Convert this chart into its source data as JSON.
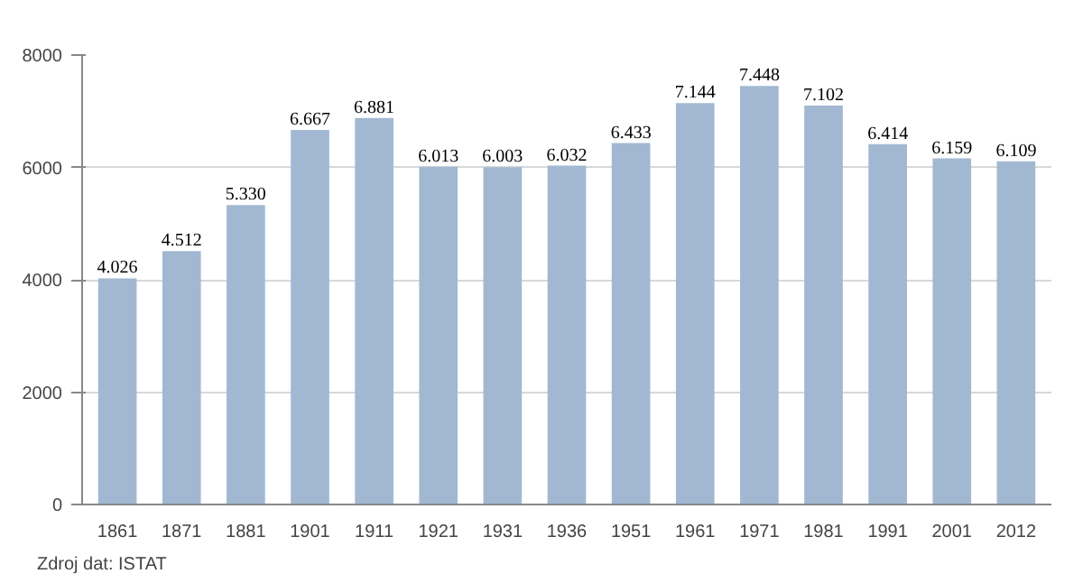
{
  "chart_data": {
    "type": "bar",
    "categories": [
      "1861",
      "1871",
      "1881",
      "1901",
      "1911",
      "1921",
      "1931",
      "1936",
      "1951",
      "1961",
      "1971",
      "1981",
      "1991",
      "2001",
      "2012"
    ],
    "values": [
      4026,
      4512,
      5330,
      6667,
      6881,
      6013,
      6003,
      6032,
      6433,
      7144,
      7448,
      7102,
      6414,
      6159,
      6109
    ],
    "value_labels": [
      "4.026",
      "4.512",
      "5.330",
      "6.667",
      "6.881",
      "6.013",
      "6.003",
      "6.032",
      "6.433",
      "7.144",
      "7.448",
      "7.102",
      "6.414",
      "6.159",
      "6.109"
    ],
    "color": "#a2b8d2",
    "ylim": [
      0,
      8000
    ],
    "yticks": [
      0,
      2000,
      4000,
      6000,
      8000
    ],
    "grid": "y",
    "annotations": [
      "Zdroj dat: ISTAT"
    ]
  }
}
